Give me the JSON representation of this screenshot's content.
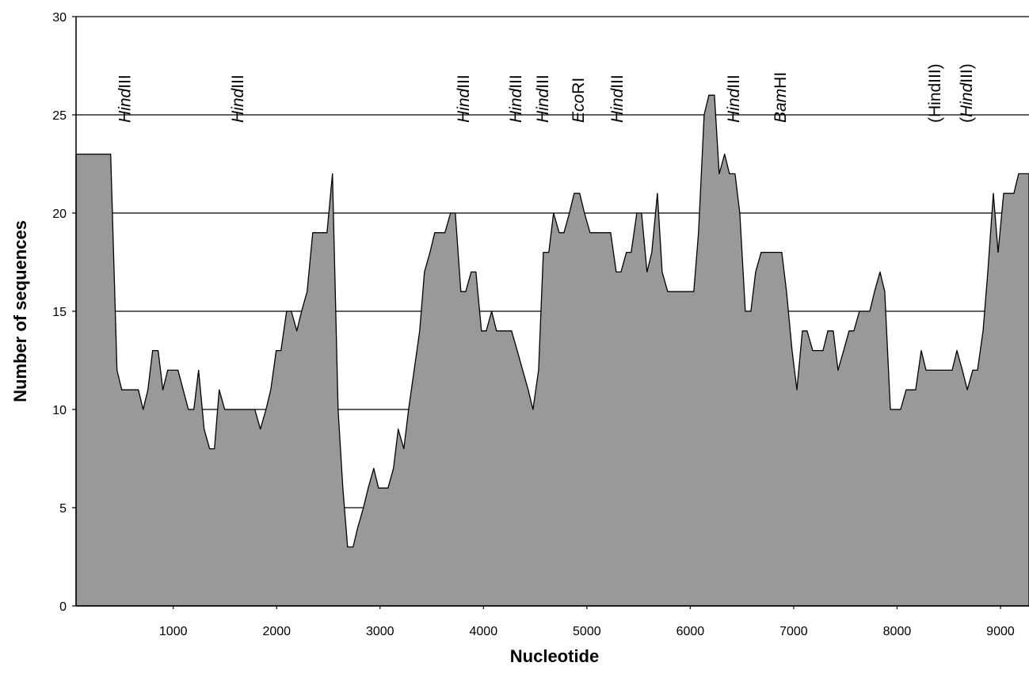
{
  "chart_data": {
    "type": "area",
    "xlabel": "Nucleotide",
    "ylabel": "Number of sequences",
    "color": "#999999",
    "xlim": [
      60,
      9276
    ],
    "ylim": [
      0,
      30
    ],
    "xticks": [
      1000,
      2000,
      3000,
      4000,
      5000,
      6000,
      7000,
      8000,
      9000
    ],
    "yticks": [
      0,
      5,
      10,
      15,
      20,
      25,
      30
    ],
    "grid": true,
    "x": [
      60,
      395,
      456,
      502,
      663,
      709,
      755,
      801,
      854,
      900,
      946,
      1046,
      1146,
      1199,
      1245,
      1299,
      1352,
      1398,
      1444,
      1498,
      1789,
      1843,
      1897,
      1943,
      1996,
      2042,
      2096,
      2142,
      2195,
      2241,
      2295,
      2349,
      2487,
      2540,
      2594,
      2640,
      2686,
      2739,
      2785,
      2839,
      2885,
      2939,
      2985,
      3077,
      3130,
      3176,
      3230,
      3276,
      3330,
      3383,
      3429,
      3483,
      3529,
      3628,
      3682,
      3728,
      3782,
      3828,
      3881,
      3927,
      3981,
      4027,
      4080,
      4126,
      4272,
      4326,
      4379,
      4433,
      4479,
      4533,
      4579,
      4632,
      4678,
      4732,
      4778,
      4831,
      4877,
      4931,
      4977,
      5031,
      5230,
      5284,
      5330,
      5383,
      5429,
      5483,
      5529,
      5582,
      5628,
      5682,
      5728,
      5782,
      6034,
      6080,
      6134,
      6180,
      6234,
      6280,
      6333,
      6379,
      6433,
      6479,
      6533,
      6586,
      6632,
      6686,
      6885,
      6931,
      6985,
      7031,
      7084,
      7130,
      7184,
      7284,
      7330,
      7383,
      7429,
      7483,
      7536,
      7582,
      7636,
      7736,
      7782,
      7835,
      7881,
      7935,
      8034,
      8088,
      8180,
      8234,
      8280,
      8533,
      8579,
      8632,
      8679,
      8732,
      8778,
      8832,
      8878,
      8931,
      8977,
      9031,
      9130,
      9176,
      9276
    ],
    "y": [
      23,
      23,
      12,
      11,
      11,
      10,
      11,
      13,
      13,
      11,
      12,
      12,
      10,
      10,
      12,
      9,
      8,
      8,
      11,
      10,
      10,
      9,
      10,
      11,
      13,
      13,
      15,
      15,
      14,
      15,
      16,
      19,
      19,
      22,
      10,
      6,
      3,
      3,
      4,
      5,
      6,
      7,
      6,
      6,
      7,
      9,
      8,
      10,
      12,
      14,
      17,
      18,
      19,
      19,
      20,
      20,
      16,
      16,
      17,
      17,
      14,
      14,
      15,
      14,
      14,
      13,
      12,
      11,
      10,
      12,
      18,
      18,
      20,
      19,
      19,
      20,
      21,
      21,
      20,
      19,
      19,
      17,
      17,
      18,
      18,
      20,
      20,
      17,
      18,
      21,
      17,
      16,
      16,
      19,
      25,
      26,
      26,
      22,
      23,
      22,
      22,
      20,
      15,
      15,
      17,
      18,
      18,
      16,
      13,
      11,
      14,
      14,
      13,
      13,
      14,
      14,
      12,
      13,
      14,
      14,
      15,
      15,
      16,
      17,
      16,
      10,
      10,
      11,
      11,
      13,
      12,
      12,
      13,
      12,
      11,
      12,
      12,
      14,
      17,
      21,
      18,
      21,
      21,
      22,
      22
    ],
    "annotations": [
      {
        "x": 533,
        "parts": [
          {
            "text": "Hind",
            "italic": true
          },
          {
            "text": "III"
          }
        ]
      },
      {
        "x": 1621,
        "parts": [
          {
            "text": "Hind",
            "italic": true
          },
          {
            "text": "III"
          }
        ]
      },
      {
        "x": 3805,
        "parts": [
          {
            "text": "Hind",
            "italic": true
          },
          {
            "text": "III"
          }
        ]
      },
      {
        "x": 4310,
        "parts": [
          {
            "text": "Hind",
            "italic": true
          },
          {
            "text": "III"
          }
        ]
      },
      {
        "x": 4571,
        "parts": [
          {
            "text": "Hind",
            "italic": true
          },
          {
            "text": "III"
          }
        ]
      },
      {
        "x": 4916,
        "parts": [
          {
            "text": "Eco",
            "italic": true
          },
          {
            "text": "RI"
          }
        ]
      },
      {
        "x": 5291,
        "parts": [
          {
            "text": "Hind",
            "italic": true
          },
          {
            "text": "III"
          }
        ]
      },
      {
        "x": 6418,
        "parts": [
          {
            "text": "Hind",
            "italic": true
          },
          {
            "text": "III"
          }
        ]
      },
      {
        "x": 6870,
        "parts": [
          {
            "text": "Bam",
            "italic": true
          },
          {
            "text": "HI"
          }
        ]
      },
      {
        "x": 8364,
        "parts": [
          {
            "text": "(HindIII)"
          }
        ]
      },
      {
        "x": 8671,
        "parts": [
          {
            "text": "(",
            "italic": false
          },
          {
            "text": "Hind",
            "italic": true
          },
          {
            "text": "III)"
          }
        ]
      }
    ]
  }
}
